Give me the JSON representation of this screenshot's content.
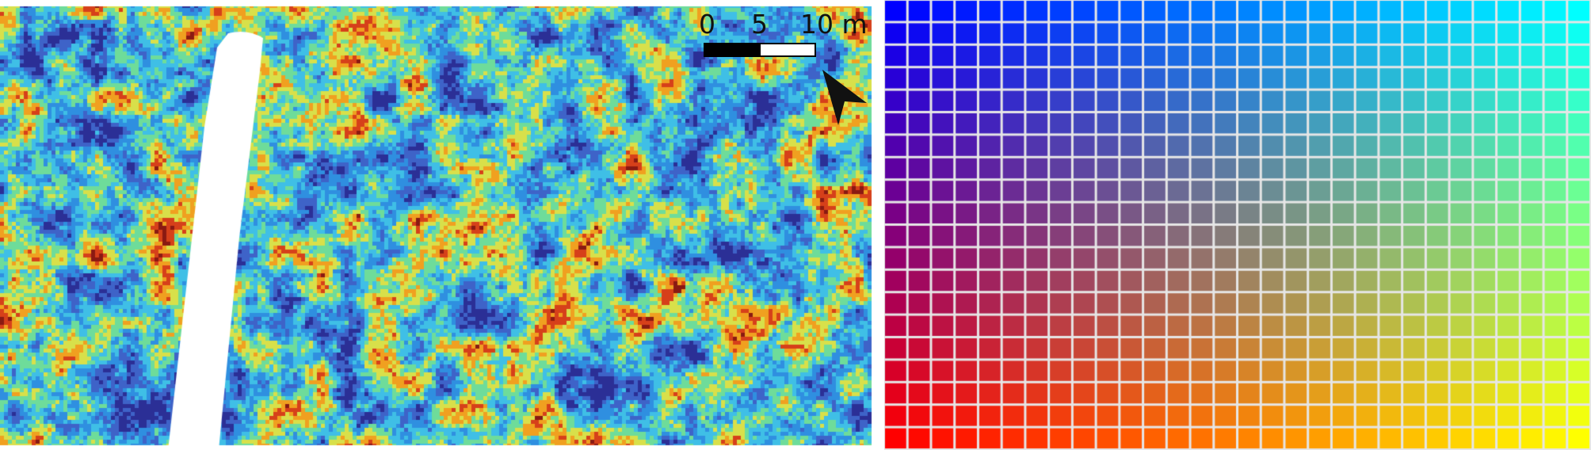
{
  "left_panel": {
    "scale_bar": {
      "labels": [
        "0",
        "5",
        "10 m"
      ],
      "colors": [
        "#000000",
        "#ffffff"
      ]
    },
    "north_arrow": {
      "icon": "north-arrow-icon",
      "color": "#111111"
    },
    "raster_palette": [
      "#2b2f96",
      "#3e63c8",
      "#2f8fe0",
      "#3fbfe6",
      "#6edc9a",
      "#d8e04a",
      "#f0a020",
      "#d6401a",
      "#8a1a12"
    ],
    "mask_color": "#ffffff"
  },
  "right_panel": {
    "grid_cols": 30,
    "grid_rows": 20,
    "corner_colors": {
      "top_left": "#0000ff",
      "top_right": "#00ffff",
      "bottom_left": "#ff0000",
      "bottom_right": "#ffff00"
    },
    "grid_line_color": "#e6e6e6"
  }
}
